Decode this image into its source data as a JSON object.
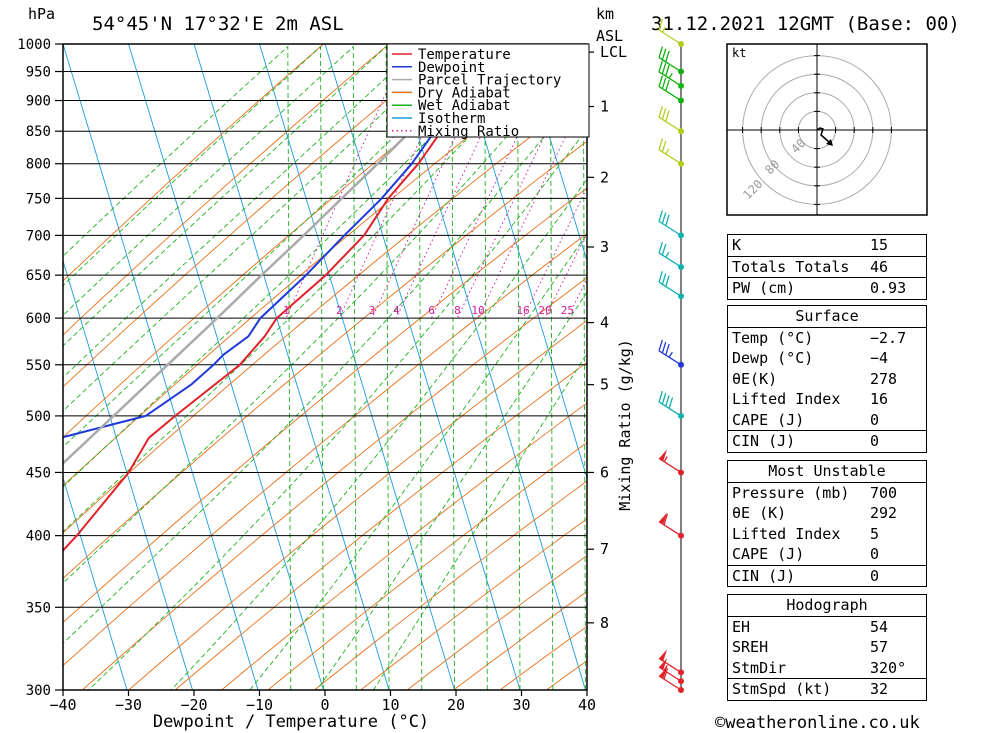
{
  "header": {
    "hpa_unit": "hPa",
    "location": "54°45'N  17°32'E  2m  ASL",
    "km_unit": "km",
    "asl_unit": "ASL",
    "datetime": "31.12.2021  12GMT  (Base: 00)"
  },
  "colors": {
    "temperature": "#e0222a",
    "dewpoint": "#1f3ad8",
    "parcel": "#aaaaaa",
    "dry_adiabat": "#e8701a",
    "wet_adiabat": "#1fb01f",
    "isotherm": "#1a9ce0",
    "mixing_ratio": "#d0209a",
    "wind_teal": "#10b0b0",
    "wind_blue": "#1f3ad8",
    "wind_red": "#e0222a",
    "wind_green": "#10b010",
    "wind_yellowgreen": "#b0d020"
  },
  "chart_data": {
    "type": "skew-t",
    "xlabel": "Dewpoint / Temperature (°C)",
    "ylabel_left": "hPa",
    "ylabel_right": "Mixing Ratio (g/kg)",
    "xlim": [
      -40,
      40
    ],
    "ylim": [
      1000,
      300
    ],
    "x_ticks": [
      "−40",
      "−30",
      "−20",
      "−10",
      "0",
      "10",
      "20",
      "30",
      "40"
    ],
    "x_tick_values": [
      -40,
      -30,
      -20,
      -10,
      0,
      10,
      20,
      30,
      40
    ],
    "pressure_levels": [
      300,
      350,
      400,
      450,
      500,
      550,
      600,
      650,
      700,
      750,
      800,
      850,
      900,
      950,
      1000
    ],
    "height_km_ticks": [
      {
        "label": "8",
        "p": 340
      },
      {
        "label": "7",
        "p": 390
      },
      {
        "label": "6",
        "p": 450
      },
      {
        "label": "5",
        "p": 530
      },
      {
        "label": "4",
        "p": 595
      },
      {
        "label": "3",
        "p": 685
      },
      {
        "label": "2",
        "p": 780
      },
      {
        "label": "1",
        "p": 890
      },
      {
        "label": "LCL",
        "p": 985
      }
    ],
    "mixing_ratio_labels": [
      "1",
      "2",
      "3",
      "4",
      "6",
      "8",
      "10",
      "16",
      "20",
      "25"
    ],
    "legend": [
      "Temperature",
      "Dewpoint",
      "Parcel Trajectory",
      "Dry Adiabat",
      "Wet Adiabat",
      "Isotherm",
      "Mixing Ratio"
    ],
    "legend_position": "top-right",
    "series": [
      {
        "name": "Temperature",
        "points": [
          [
            1000,
            -2.7
          ],
          [
            950,
            -3.2
          ],
          [
            900,
            -5.5
          ],
          [
            850,
            -8
          ],
          [
            800,
            -10
          ],
          [
            750,
            -13
          ],
          [
            700,
            -15
          ],
          [
            650,
            -19
          ],
          [
            600,
            -24.5
          ],
          [
            580,
            -25.5
          ],
          [
            550,
            -28
          ],
          [
            500,
            -35.5
          ],
          [
            480,
            -38.5
          ],
          [
            450,
            -40
          ],
          [
            400,
            -45
          ],
          [
            370,
            -49
          ],
          [
            350,
            -51
          ],
          [
            330,
            -53
          ],
          [
            310,
            -57
          ],
          [
            300,
            -59
          ]
        ]
      },
      {
        "name": "Dewpoint",
        "points": [
          [
            1000,
            -4
          ],
          [
            950,
            -5
          ],
          [
            900,
            -6.5
          ],
          [
            850,
            -9
          ],
          [
            800,
            -11
          ],
          [
            750,
            -14
          ],
          [
            700,
            -18
          ],
          [
            650,
            -22
          ],
          [
            600,
            -27
          ],
          [
            580,
            -28
          ],
          [
            560,
            -31
          ],
          [
            550,
            -32
          ],
          [
            530,
            -34.5
          ],
          [
            500,
            -40
          ],
          [
            480,
            -52
          ],
          [
            450,
            -54
          ],
          [
            400,
            -60
          ],
          [
            390,
            -61
          ],
          [
            380,
            -62
          ],
          [
            350,
            -64
          ],
          [
            320,
            -65
          ],
          [
            300,
            -67
          ]
        ]
      },
      {
        "name": "Parcel Trajectory",
        "points": [
          [
            1000,
            -3.4
          ],
          [
            950,
            -6.2
          ],
          [
            900,
            -9.3
          ],
          [
            850,
            -12.7
          ],
          [
            800,
            -16.2
          ],
          [
            750,
            -20.1
          ],
          [
            700,
            -24.2
          ],
          [
            650,
            -28.8
          ],
          [
            600,
            -33.6
          ],
          [
            550,
            -39
          ],
          [
            500,
            -44.9
          ],
          [
            450,
            -51.5
          ],
          [
            400,
            -58.8
          ],
          [
            350,
            -67
          ],
          [
            300,
            -76
          ]
        ]
      }
    ],
    "wind_barbs": [
      {
        "p": 300,
        "speed_kt": 60,
        "color": "red"
      },
      {
        "p": 305,
        "speed_kt": 55,
        "color": "red"
      },
      {
        "p": 310,
        "speed_kt": 50,
        "color": "red"
      },
      {
        "p": 400,
        "speed_kt": 60,
        "color": "red"
      },
      {
        "p": 450,
        "speed_kt": 55,
        "color": "red"
      },
      {
        "p": 500,
        "speed_kt": 40,
        "color": "teal"
      },
      {
        "p": 550,
        "speed_kt": 35,
        "color": "blue"
      },
      {
        "p": 625,
        "speed_kt": 30,
        "color": "teal"
      },
      {
        "p": 660,
        "speed_kt": 25,
        "color": "teal"
      },
      {
        "p": 700,
        "speed_kt": 30,
        "color": "teal"
      },
      {
        "p": 800,
        "speed_kt": 25,
        "color": "yellowgreen"
      },
      {
        "p": 850,
        "speed_kt": 30,
        "color": "yellowgreen"
      },
      {
        "p": 900,
        "speed_kt": 30,
        "color": "green"
      },
      {
        "p": 925,
        "speed_kt": 35,
        "color": "green"
      },
      {
        "p": 950,
        "speed_kt": 30,
        "color": "green"
      },
      {
        "p": 1000,
        "speed_kt": 15,
        "color": "yellowgreen"
      }
    ],
    "hodograph": {
      "unit": "kt",
      "ring_labels": [
        "40",
        "80",
        "120"
      ],
      "trace": [
        [
          0,
          0
        ],
        [
          3,
          -2
        ],
        [
          6,
          -1
        ],
        [
          4,
          5
        ],
        [
          12,
          12
        ]
      ]
    }
  },
  "indices": {
    "general": [
      {
        "label": "K",
        "value": "15"
      },
      {
        "label": "Totals Totals",
        "value": "46"
      },
      {
        "label": "PW (cm)",
        "value": "0.93"
      }
    ],
    "surface": {
      "title": "Surface",
      "rows": [
        {
          "label": "Temp (°C)",
          "value": "−2.7"
        },
        {
          "label": "Dewp (°C)",
          "value": "−4"
        },
        {
          "label": "θE(K)",
          "value": "278"
        },
        {
          "label": "Lifted Index",
          "value": "16"
        },
        {
          "label": "CAPE (J)",
          "value": "0"
        },
        {
          "label": "CIN (J)",
          "value": "0"
        }
      ]
    },
    "most_unstable": {
      "title": "Most Unstable",
      "rows": [
        {
          "label": "Pressure (mb)",
          "value": "700"
        },
        {
          "label": "θE (K)",
          "value": "292"
        },
        {
          "label": "Lifted Index",
          "value": "5"
        },
        {
          "label": "CAPE (J)",
          "value": "0"
        },
        {
          "label": "CIN (J)",
          "value": "0"
        }
      ]
    },
    "hodograph": {
      "title": "Hodograph",
      "rows": [
        {
          "label": "EH",
          "value": "54"
        },
        {
          "label": "SREH",
          "value": "57"
        },
        {
          "label": "StmDir",
          "value": "320°"
        },
        {
          "label": "StmSpd (kt)",
          "value": "32"
        }
      ]
    }
  },
  "footer": {
    "credit": "©weatheronline.co.uk"
  }
}
